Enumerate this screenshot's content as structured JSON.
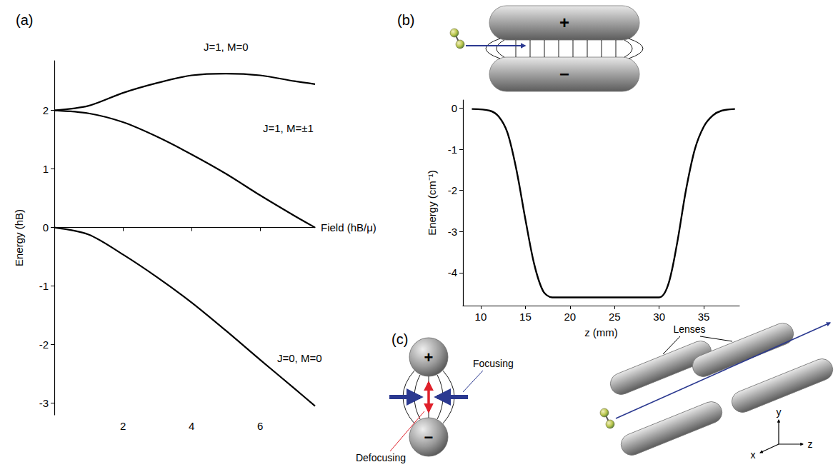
{
  "chart_data": [
    {
      "type": "line",
      "label": "(a)",
      "x_label": "Field (hB/μ)",
      "y_label": "Energy (hB)",
      "x": [
        0,
        1,
        2,
        3,
        4,
        5,
        6,
        7,
        7.6
      ],
      "series": [
        {
          "name": "J=1, M=0",
          "color": "#000000",
          "values": [
            2,
            2.08,
            2.3,
            2.47,
            2.6,
            2.63,
            2.6,
            2.5,
            2.45
          ]
        },
        {
          "name": "J=1, M=±1",
          "color": "#000000",
          "values": [
            2,
            1.95,
            1.8,
            1.55,
            1.25,
            0.92,
            0.55,
            0.2,
            0
          ]
        },
        {
          "name": "J=0, M=0",
          "color": "#000000",
          "values": [
            0,
            -0.12,
            -0.46,
            -0.85,
            -1.28,
            -1.76,
            -2.26,
            -2.75,
            -3.05
          ]
        }
      ],
      "xlim": [
        0,
        7.6
      ],
      "xticks": [
        2,
        4,
        6
      ],
      "ylim": [
        -3.2,
        2.85
      ],
      "yticks": [
        -3,
        -2,
        -1,
        0,
        1,
        2
      ],
      "grid": false
    },
    {
      "type": "line",
      "label": "(b)",
      "x_label": "z (mm)",
      "y_label": "Energy (cm⁻¹)",
      "x": [
        9,
        11,
        12,
        13,
        14,
        15,
        16,
        17,
        18,
        30,
        31,
        32,
        33,
        34,
        35,
        36,
        37,
        38.5
      ],
      "values": [
        -0.02,
        -0.06,
        -0.2,
        -0.6,
        -1.5,
        -2.7,
        -3.8,
        -4.45,
        -4.6,
        -4.6,
        -4.3,
        -3.3,
        -2.0,
        -1.0,
        -0.45,
        -0.18,
        -0.06,
        -0.02
      ],
      "color": "#000000",
      "xlim": [
        8,
        39
      ],
      "xticks": [
        10,
        15,
        20,
        25,
        30,
        35
      ],
      "ylim": [
        -4.8,
        0.2
      ],
      "yticks": [
        -4,
        -3,
        -2,
        -1,
        0
      ],
      "grid": false
    }
  ],
  "diagrams": {
    "b": {
      "electrodes": {
        "top": "+",
        "bottom": "−"
      }
    },
    "c": {
      "label": "(c)",
      "electrodes": {
        "top": "+",
        "bottom": "−"
      },
      "focusing": "Focusing",
      "defocusing": "Defocusing",
      "lenses": "Lenses",
      "axes": {
        "x": "x",
        "y": "y",
        "z": "z"
      }
    }
  }
}
